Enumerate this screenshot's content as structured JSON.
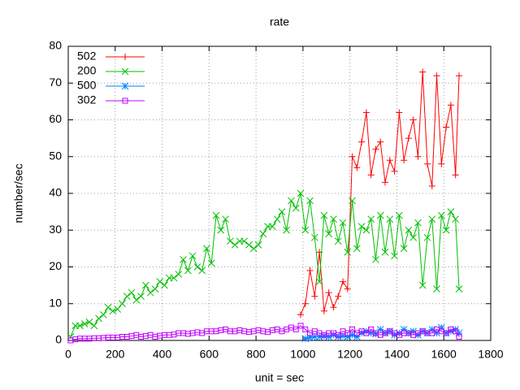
{
  "chart_data": {
    "type": "line",
    "title": "rate",
    "x_label": "unit = sec",
    "y_label": "number/sec",
    "x": [
      10,
      30,
      50,
      70,
      90,
      110,
      130,
      150,
      170,
      190,
      210,
      230,
      250,
      270,
      290,
      310,
      330,
      350,
      370,
      390,
      410,
      430,
      450,
      470,
      490,
      510,
      530,
      550,
      570,
      590,
      610,
      630,
      650,
      670,
      690,
      710,
      730,
      750,
      770,
      790,
      810,
      830,
      850,
      870,
      890,
      910,
      930,
      950,
      970,
      990,
      1010,
      1030,
      1050,
      1070,
      1090,
      1110,
      1130,
      1150,
      1170,
      1190,
      1210,
      1230,
      1250,
      1270,
      1290,
      1310,
      1330,
      1350,
      1370,
      1390,
      1410,
      1430,
      1450,
      1470,
      1490,
      1510,
      1530,
      1550,
      1570,
      1590,
      1610,
      1630,
      1650,
      1665
    ],
    "series": [
      {
        "name": "502",
        "color": "#ff0000",
        "marker": "plus",
        "values": [
          null,
          null,
          null,
          null,
          null,
          null,
          null,
          null,
          null,
          null,
          null,
          null,
          null,
          null,
          null,
          null,
          null,
          null,
          null,
          null,
          null,
          null,
          null,
          null,
          null,
          null,
          null,
          null,
          null,
          null,
          null,
          null,
          null,
          null,
          null,
          null,
          null,
          null,
          null,
          null,
          null,
          null,
          null,
          null,
          null,
          null,
          null,
          null,
          null,
          7,
          10,
          19,
          12,
          24,
          8,
          13,
          9,
          12,
          16,
          14,
          50,
          47,
          54,
          62,
          45,
          52,
          54,
          43,
          49,
          46,
          62,
          49,
          55,
          60,
          50,
          73,
          48,
          42,
          72,
          48,
          58,
          64,
          45,
          72
        ]
      },
      {
        "name": "200",
        "color": "#00c000",
        "marker": "cross",
        "values": [
          1,
          4,
          4,
          4.5,
          5,
          4,
          6,
          7,
          9,
          8,
          8.5,
          10,
          12,
          13,
          11,
          12,
          15,
          13,
          14,
          16,
          15,
          17,
          17,
          18,
          22,
          19,
          23,
          20,
          19,
          25,
          21,
          34,
          30,
          33,
          27,
          26,
          27,
          27,
          26,
          25,
          26,
          29,
          31,
          31,
          33,
          35,
          30,
          38,
          36,
          40,
          30,
          38,
          28,
          16,
          34,
          29,
          33,
          27,
          32,
          24,
          38,
          25,
          31,
          30,
          33,
          22,
          34,
          24,
          33,
          23,
          34,
          25,
          30,
          28,
          32,
          15,
          28,
          33,
          14,
          34,
          30,
          35,
          33,
          14
        ]
      },
      {
        "name": "500",
        "color": "#0080ff",
        "marker": "star",
        "values": [
          null,
          null,
          null,
          null,
          null,
          null,
          null,
          null,
          null,
          null,
          null,
          null,
          null,
          null,
          null,
          null,
          null,
          null,
          null,
          null,
          null,
          null,
          null,
          null,
          null,
          null,
          null,
          null,
          null,
          null,
          null,
          null,
          null,
          null,
          null,
          null,
          null,
          null,
          null,
          null,
          null,
          null,
          null,
          null,
          null,
          null,
          null,
          null,
          null,
          null,
          0.5,
          0.8,
          1,
          1,
          1.2,
          1,
          1.5,
          1,
          1.2,
          1,
          1.5,
          1,
          2,
          2.5,
          2,
          1.8,
          3,
          2,
          2.5,
          1.5,
          2,
          3,
          2,
          2.5,
          1.5,
          2.5,
          2,
          3,
          2,
          3.5,
          2,
          2.5,
          3,
          2
        ]
      },
      {
        "name": "302",
        "color": "#c000ff",
        "marker": "square",
        "values": [
          0,
          0.3,
          0.5,
          0.5,
          0.5,
          0.6,
          0.6,
          0.7,
          0.8,
          0.8,
          0.8,
          1,
          1,
          1.2,
          1.5,
          1,
          1.2,
          1.5,
          1,
          1.3,
          1.5,
          1.5,
          1.6,
          2,
          2,
          1.8,
          2,
          2.2,
          2,
          2.5,
          2.5,
          2.5,
          2.8,
          3,
          2.5,
          2.5,
          2.8,
          2.5,
          2.3,
          2.5,
          2.8,
          2.5,
          2.3,
          2.8,
          3,
          2.5,
          3,
          3.5,
          3,
          4,
          3,
          2,
          2.5,
          2,
          1.5,
          2,
          2,
          1.5,
          2.5,
          2,
          3,
          2,
          2.5,
          2,
          3,
          2,
          1.5,
          2,
          2.5,
          2,
          1.5,
          2,
          2,
          1.5,
          2,
          2.5,
          2,
          2,
          3,
          2.5,
          2,
          3,
          2.5,
          1
        ]
      }
    ],
    "xlim": [
      0,
      1800
    ],
    "xticks": [
      0,
      200,
      400,
      600,
      800,
      1000,
      1200,
      1400,
      1600,
      1800
    ],
    "ylim": [
      0,
      80
    ],
    "yticks": [
      0,
      10,
      20,
      30,
      40,
      50,
      60,
      70,
      80
    ],
    "grid": true,
    "legend_position": "top-left"
  }
}
